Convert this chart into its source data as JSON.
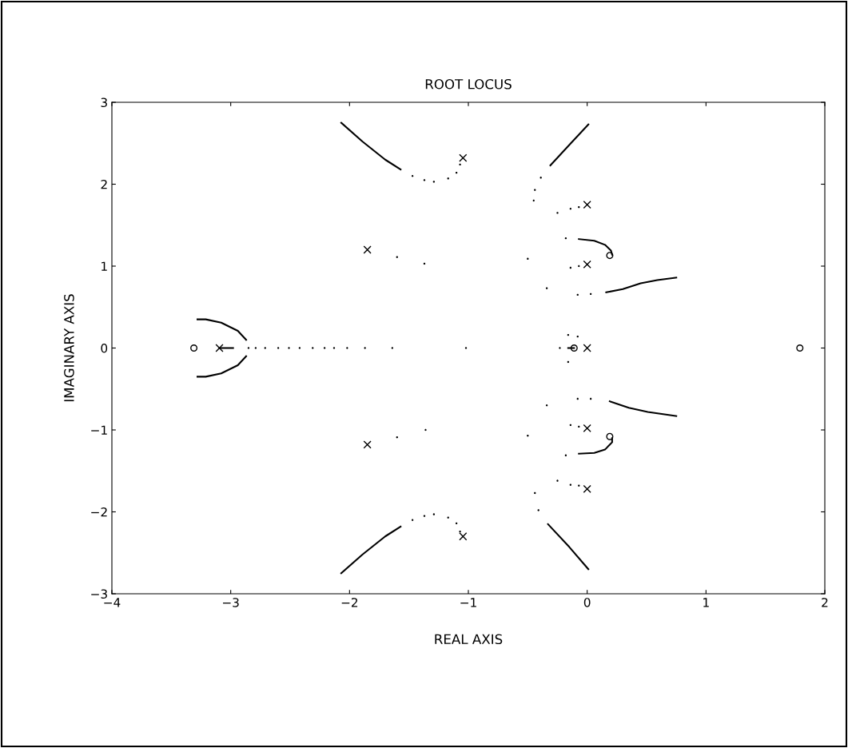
{
  "chart_data": {
    "type": "scatter",
    "title": "ROOT LOCUS",
    "xlabel": "REAL AXIS",
    "ylabel": "IMAGINARY AXIS",
    "xlim": [
      -4,
      2
    ],
    "ylim": [
      -3,
      3
    ],
    "xticks": [
      -4,
      -3,
      -2,
      -1,
      0,
      1,
      2
    ],
    "yticks": [
      -3,
      -2,
      -1,
      0,
      1,
      2,
      3
    ],
    "grid": false,
    "legend": false,
    "series": [
      {
        "type": "line",
        "color": "#000000",
        "line_style": "solid",
        "x": [
          -2.07,
          -1.89,
          -1.7,
          -1.57
        ],
        "values": [
          2.75,
          2.52,
          2.3,
          2.18
        ]
      },
      {
        "type": "line",
        "color": "#000000",
        "line_style": "solid",
        "x": [
          -2.07,
          -1.89,
          -1.7,
          -1.57
        ],
        "values": [
          -2.75,
          -2.52,
          -2.3,
          -2.18
        ]
      },
      {
        "type": "line",
        "color": "#000000",
        "line_style": "solid",
        "x": [
          -3.28,
          -3.21,
          -3.08,
          -2.94,
          -2.87
        ],
        "values": [
          0.35,
          0.35,
          0.31,
          0.21,
          0.1
        ]
      },
      {
        "type": "line",
        "color": "#000000",
        "line_style": "solid",
        "x": [
          -3.28,
          -3.21,
          -3.08,
          -2.94,
          -2.87
        ],
        "values": [
          -0.35,
          -0.35,
          -0.31,
          -0.21,
          -0.1
        ]
      },
      {
        "type": "line",
        "color": "#000000",
        "line_style": "solid",
        "x": [
          -3.095,
          -2.98
        ],
        "values": [
          0,
          0
        ]
      },
      {
        "type": "line",
        "color": "#000000",
        "line_style": "solid",
        "x": [
          0.01,
          -0.15,
          -0.31
        ],
        "values": [
          2.73,
          2.48,
          2.23
        ]
      },
      {
        "type": "line",
        "color": "#000000",
        "line_style": "solid",
        "x": [
          0.01,
          -0.15,
          -0.33
        ],
        "values": [
          -2.7,
          -2.43,
          -2.15
        ]
      },
      {
        "type": "line",
        "color": "#000000",
        "line_style": "solid",
        "x": [
          -0.07,
          0.06,
          0.15,
          0.2,
          0.21
        ],
        "values": [
          1.33,
          1.31,
          1.26,
          1.19,
          1.14
        ]
      },
      {
        "type": "line",
        "color": "#000000",
        "line_style": "solid",
        "x": [
          -0.07,
          0.06,
          0.15,
          0.21,
          0.21
        ],
        "values": [
          -1.29,
          -1.28,
          -1.24,
          -1.15,
          -1.1
        ]
      },
      {
        "type": "line",
        "color": "#000000",
        "line_style": "solid",
        "x": [
          0.16,
          0.3,
          0.45,
          0.59,
          0.75
        ],
        "values": [
          0.68,
          0.72,
          0.79,
          0.83,
          0.86
        ]
      },
      {
        "type": "line",
        "color": "#000000",
        "line_style": "solid",
        "x": [
          0.19,
          0.35,
          0.51,
          0.75
        ],
        "values": [
          -0.65,
          -0.73,
          -0.78,
          -0.83
        ]
      },
      {
        "type": "line",
        "color": "#000000",
        "line_style": "solid",
        "x": [
          -0.16,
          -0.11
        ],
        "values": [
          0,
          0
        ]
      },
      {
        "color": "#000000",
        "x": [
          -1.47,
          -1.37,
          -1.29,
          -1.17,
          -1.1,
          -1.07,
          -1.47,
          -1.37,
          -1.29,
          -1.17,
          -1.1,
          -1.07,
          -1.6,
          -1.37,
          -1.6,
          -1.36,
          -2.85,
          -2.79,
          -2.71,
          -2.6,
          -2.51,
          -2.42,
          -2.31,
          -2.21,
          -2.13,
          -2.02,
          -1.87,
          -1.64,
          -1.02,
          -0.39,
          -0.44,
          -0.45,
          -0.41,
          -0.44,
          -0.07,
          -0.14,
          -0.25,
          -0.07,
          -0.14,
          -0.25,
          -0.18,
          -0.18,
          -0.07,
          -0.14,
          -0.5,
          -0.07,
          -0.14,
          -0.5,
          -0.08,
          0.03,
          -0.34,
          -0.08,
          0.03,
          -0.34,
          -0.23,
          -0.16,
          -0.08,
          -0.16
        ],
        "values": [
          2.1,
          2.05,
          2.03,
          2.07,
          2.14,
          2.24,
          -2.1,
          -2.05,
          -2.03,
          -2.07,
          -2.14,
          -2.24,
          1.11,
          1.03,
          -1.09,
          -1.0,
          0,
          0,
          0,
          0,
          0,
          0,
          0,
          0,
          0,
          0,
          0,
          0,
          0,
          2.08,
          1.93,
          1.8,
          -1.98,
          -1.77,
          1.72,
          1.7,
          1.65,
          -1.68,
          -1.67,
          -1.62,
          1.34,
          -1.31,
          1.0,
          0.98,
          1.09,
          -0.96,
          -0.94,
          -1.07,
          0.65,
          0.66,
          0.73,
          -0.62,
          -0.62,
          -0.7,
          0,
          0.16,
          0.14,
          -0.17
        ]
      },
      {
        "color": "#000000",
        "marker": "cross",
        "x": [
          -1.045,
          -1.85,
          -3.095,
          -1.85,
          -1.045,
          0,
          0,
          0,
          0,
          0
        ],
        "values": [
          2.32,
          1.2,
          0,
          -1.18,
          -2.3,
          1.75,
          1.02,
          0,
          -0.98,
          -1.72
        ]
      },
      {
        "color": "#000000",
        "marker": "circle",
        "x": [
          -3.31,
          -0.11,
          0.19,
          0.19,
          1.79
        ],
        "values": [
          0,
          0,
          1.13,
          -1.08,
          0
        ]
      }
    ]
  }
}
